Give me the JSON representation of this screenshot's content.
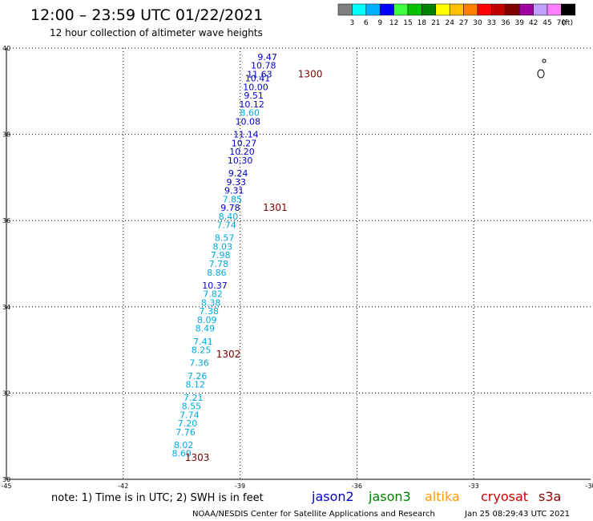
{
  "header": {
    "title": "12:00 – 23:59 UTC 01/22/2021",
    "subtitle": "12 hour collection of altimeter wave heights"
  },
  "colorbar": {
    "colors": [
      "#808080",
      "#00ffff",
      "#00b0ff",
      "#0000ff",
      "#40ff40",
      "#00c000",
      "#008000",
      "#ffff00",
      "#ffc000",
      "#ff8000",
      "#ff0000",
      "#c00000",
      "#800000",
      "#a000a0",
      "#c0a0ff",
      "#ff80ff",
      "#000000"
    ],
    "labels": [
      "3",
      "6",
      "9",
      "12",
      "15",
      "18",
      "21",
      "24",
      "27",
      "30",
      "33",
      "36",
      "39",
      "42",
      "45",
      "70"
    ],
    "unit": "(ft)"
  },
  "footer": {
    "note": "note:  1) Time is in UTC;  2) SWH is in feet",
    "credit": "NOAA/NESDIS Center for Satellite Applications and Research",
    "timestamp": "Jan 25 08:29:43 UTC 2021"
  },
  "satellites": [
    {
      "name": "jason2",
      "color": "#0000cc"
    },
    {
      "name": "jason3",
      "color": "#008000"
    },
    {
      "name": "altika",
      "color": "#ff9900"
    },
    {
      "name": "cryosat",
      "color": "#cc0000"
    },
    {
      "name": "s3a",
      "color": "#880000"
    }
  ],
  "chart_data": {
    "type": "scatter",
    "title": "12:00 – 23:59 UTC 01/22/2021",
    "subtitle": "12 hour collection of altimeter wave heights",
    "xlim": [
      -45,
      -30
    ],
    "ylim": [
      30,
      40
    ],
    "xticks": [
      "-45",
      "-42",
      "-39",
      "-36",
      "-33",
      "-30"
    ],
    "xtick_values": [
      -45,
      -42,
      -39,
      -36,
      -33,
      -30
    ],
    "yticks": [
      "30",
      "32",
      "34",
      "36",
      "38",
      "40"
    ],
    "ytick_values": [
      30,
      32,
      34,
      36,
      38,
      40
    ],
    "grid": true,
    "points": [
      {
        "lon": -38.3,
        "lat": 39.8,
        "label": "9.47",
        "color": "#0000cc"
      },
      {
        "lon": -38.4,
        "lat": 39.6,
        "label": "10.78",
        "color": "#0000cc"
      },
      {
        "lon": -38.5,
        "lat": 39.4,
        "label": "11.63",
        "color": "#0000cc"
      },
      {
        "lon": -38.55,
        "lat": 39.3,
        "label": "10.41",
        "color": "#0000cc"
      },
      {
        "lon": -38.6,
        "lat": 39.1,
        "label": "10.00",
        "color": "#0000cc"
      },
      {
        "lon": -38.65,
        "lat": 38.9,
        "label": "9.51",
        "color": "#0000cc"
      },
      {
        "lon": -38.7,
        "lat": 38.7,
        "label": "10.12",
        "color": "#0000cc"
      },
      {
        "lon": -38.75,
        "lat": 38.5,
        "label": "8.60",
        "color": "#00a8e0"
      },
      {
        "lon": -38.8,
        "lat": 38.3,
        "label": "10.08",
        "color": "#0000cc"
      },
      {
        "lon": -38.85,
        "lat": 38.0,
        "label": "11.14",
        "color": "#0000cc"
      },
      {
        "lon": -38.9,
        "lat": 37.8,
        "label": "10.27",
        "color": "#0000cc"
      },
      {
        "lon": -38.95,
        "lat": 37.6,
        "label": "10.20",
        "color": "#0000cc"
      },
      {
        "lon": -39.0,
        "lat": 37.4,
        "label": "10.30",
        "color": "#0000cc"
      },
      {
        "lon": -39.05,
        "lat": 37.1,
        "label": "9.24",
        "color": "#0000cc"
      },
      {
        "lon": -39.1,
        "lat": 36.9,
        "label": "9.33",
        "color": "#0000cc"
      },
      {
        "lon": -39.15,
        "lat": 36.7,
        "label": "9.31",
        "color": "#0000cc"
      },
      {
        "lon": -39.2,
        "lat": 36.5,
        "label": "7.85",
        "color": "#00a8e0"
      },
      {
        "lon": -39.25,
        "lat": 36.3,
        "label": "9.78",
        "color": "#0000cc"
      },
      {
        "lon": -39.3,
        "lat": 36.1,
        "label": "8.40",
        "color": "#00a8e0"
      },
      {
        "lon": -39.35,
        "lat": 35.9,
        "label": "7.74",
        "color": "#00a8e0"
      },
      {
        "lon": -39.4,
        "lat": 35.6,
        "label": "8.57",
        "color": "#00a8e0"
      },
      {
        "lon": -39.45,
        "lat": 35.4,
        "label": "8.03",
        "color": "#00a8e0"
      },
      {
        "lon": -39.5,
        "lat": 35.2,
        "label": "7.98",
        "color": "#00a8e0"
      },
      {
        "lon": -39.55,
        "lat": 35.0,
        "label": "7.78",
        "color": "#00a8e0"
      },
      {
        "lon": -39.6,
        "lat": 34.8,
        "label": "8.86",
        "color": "#00a8e0"
      },
      {
        "lon": -39.65,
        "lat": 34.5,
        "label": "10.37",
        "color": "#0000cc"
      },
      {
        "lon": -39.7,
        "lat": 34.3,
        "label": "7.82",
        "color": "#00a8e0"
      },
      {
        "lon": -39.75,
        "lat": 34.1,
        "label": "8.38",
        "color": "#00a8e0"
      },
      {
        "lon": -39.8,
        "lat": 33.9,
        "label": "7.38",
        "color": "#00a8e0"
      },
      {
        "lon": -39.85,
        "lat": 33.7,
        "label": "8.09",
        "color": "#00a8e0"
      },
      {
        "lon": -39.9,
        "lat": 33.5,
        "label": "8.49",
        "color": "#00a8e0"
      },
      {
        "lon": -39.95,
        "lat": 33.2,
        "label": "7.41",
        "color": "#00a8e0"
      },
      {
        "lon": -40.0,
        "lat": 33.0,
        "label": "8.25",
        "color": "#00a8e0"
      },
      {
        "lon": -40.05,
        "lat": 32.7,
        "label": "7.36",
        "color": "#00a8e0"
      },
      {
        "lon": -40.1,
        "lat": 32.4,
        "label": "7.26",
        "color": "#00a8e0"
      },
      {
        "lon": -40.15,
        "lat": 32.2,
        "label": "8.12",
        "color": "#00a8e0"
      },
      {
        "lon": -40.2,
        "lat": 31.9,
        "label": "7.21",
        "color": "#00a8e0"
      },
      {
        "lon": -40.25,
        "lat": 31.7,
        "label": "8.55",
        "color": "#00a8e0"
      },
      {
        "lon": -40.3,
        "lat": 31.5,
        "label": "7.74",
        "color": "#00a8e0"
      },
      {
        "lon": -40.35,
        "lat": 31.3,
        "label": "7.20",
        "color": "#00a8e0"
      },
      {
        "lon": -40.4,
        "lat": 31.1,
        "label": "7.76",
        "color": "#00a8e0"
      },
      {
        "lon": -40.45,
        "lat": 30.8,
        "label": "8.02",
        "color": "#00a8e0"
      },
      {
        "lon": -40.5,
        "lat": 30.6,
        "label": "8.69",
        "color": "#00a8e0"
      }
    ],
    "time_labels": [
      {
        "lon": -37.2,
        "lat": 39.4,
        "label": "1300"
      },
      {
        "lon": -38.1,
        "lat": 36.3,
        "label": "1301"
      },
      {
        "lon": -39.3,
        "lat": 32.9,
        "label": "1302"
      },
      {
        "lon": -40.1,
        "lat": 30.5,
        "label": "1303"
      }
    ]
  }
}
